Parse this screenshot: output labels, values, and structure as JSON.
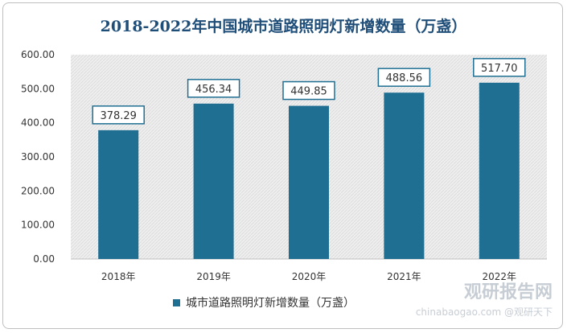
{
  "chart_data": {
    "type": "bar",
    "title": "2018-2022年中国城市道路照明灯新增数量（万盏）",
    "categories": [
      "2018年",
      "2019年",
      "2020年",
      "2021年",
      "2022年"
    ],
    "series": [
      {
        "name": "城市道路照明灯新增数量（万盏）",
        "values": [
          378.29,
          456.34,
          449.85,
          488.56,
          517.7
        ]
      }
    ],
    "data_labels": [
      "378.29",
      "456.34",
      "449.85",
      "488.56",
      "517.70"
    ],
    "ylim": [
      0,
      600
    ],
    "yticks": [
      "0.00",
      "100.00",
      "200.00",
      "300.00",
      "400.00",
      "500.00",
      "600.00"
    ],
    "xlabel": "",
    "ylabel": "",
    "grid": false,
    "legend": "bottom",
    "colors": {
      "bar": "#1f6f93",
      "label_border": "#1f6f93",
      "title": "#1f4e79",
      "plot_bg": "#efefef"
    }
  },
  "watermark": {
    "logo": "观研报告网",
    "line": "chinabaogao.com @观研天下"
  }
}
